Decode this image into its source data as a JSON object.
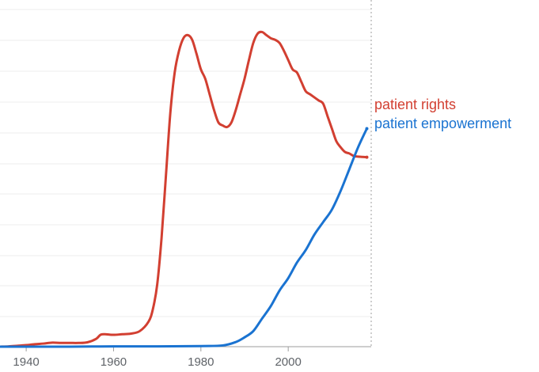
{
  "chart_data": {
    "type": "line",
    "x_ticks": [
      1940,
      1960,
      1980,
      2000
    ],
    "xlim": [
      1934,
      2019
    ],
    "ylim": [
      0,
      1.1
    ],
    "grid": true,
    "series": [
      {
        "name": "patient rights",
        "color": "#d23f31",
        "points": [
          [
            1934,
            0.0
          ],
          [
            1936,
            0.001
          ],
          [
            1938,
            0.003
          ],
          [
            1940,
            0.005
          ],
          [
            1942,
            0.008
          ],
          [
            1944,
            0.01
          ],
          [
            1946,
            0.013
          ],
          [
            1948,
            0.012
          ],
          [
            1950,
            0.012
          ],
          [
            1952,
            0.012
          ],
          [
            1954,
            0.014
          ],
          [
            1956,
            0.025
          ],
          [
            1957,
            0.038
          ],
          [
            1958,
            0.04
          ],
          [
            1960,
            0.038
          ],
          [
            1962,
            0.04
          ],
          [
            1964,
            0.042
          ],
          [
            1966,
            0.05
          ],
          [
            1968,
            0.08
          ],
          [
            1969,
            0.12
          ],
          [
            1970,
            0.2
          ],
          [
            1971,
            0.35
          ],
          [
            1972,
            0.55
          ],
          [
            1973,
            0.75
          ],
          [
            1974,
            0.88
          ],
          [
            1975,
            0.95
          ],
          [
            1976,
            0.99
          ],
          [
            1977,
            1.0
          ],
          [
            1978,
            0.985
          ],
          [
            1979,
            0.94
          ],
          [
            1980,
            0.89
          ],
          [
            1981,
            0.86
          ],
          [
            1982,
            0.81
          ],
          [
            1983,
            0.76
          ],
          [
            1984,
            0.72
          ],
          [
            1985,
            0.71
          ],
          [
            1986,
            0.705
          ],
          [
            1987,
            0.72
          ],
          [
            1988,
            0.76
          ],
          [
            1989,
            0.81
          ],
          [
            1990,
            0.86
          ],
          [
            1991,
            0.92
          ],
          [
            1992,
            0.975
          ],
          [
            1993,
            1.005
          ],
          [
            1994,
            1.01
          ],
          [
            1995,
            1.0
          ],
          [
            1996,
            0.99
          ],
          [
            1997,
            0.985
          ],
          [
            1998,
            0.975
          ],
          [
            1999,
            0.95
          ],
          [
            2000,
            0.92
          ],
          [
            2001,
            0.89
          ],
          [
            2002,
            0.88
          ],
          [
            2003,
            0.85
          ],
          [
            2004,
            0.82
          ],
          [
            2005,
            0.81
          ],
          [
            2006,
            0.8
          ],
          [
            2007,
            0.79
          ],
          [
            2008,
            0.78
          ],
          [
            2009,
            0.74
          ],
          [
            2010,
            0.7
          ],
          [
            2011,
            0.66
          ],
          [
            2012,
            0.64
          ],
          [
            2013,
            0.625
          ],
          [
            2014,
            0.62
          ],
          [
            2015,
            0.612
          ],
          [
            2016,
            0.61
          ],
          [
            2017,
            0.609
          ],
          [
            2018,
            0.608
          ]
        ]
      },
      {
        "name": "patient empowerment",
        "color": "#1a73d1",
        "points": [
          [
            1934,
            0.0
          ],
          [
            1940,
            0.0
          ],
          [
            1950,
            0.0
          ],
          [
            1960,
            0.001
          ],
          [
            1970,
            0.001
          ],
          [
            1980,
            0.002
          ],
          [
            1985,
            0.004
          ],
          [
            1988,
            0.015
          ],
          [
            1990,
            0.03
          ],
          [
            1992,
            0.05
          ],
          [
            1994,
            0.09
          ],
          [
            1996,
            0.13
          ],
          [
            1998,
            0.18
          ],
          [
            2000,
            0.22
          ],
          [
            2002,
            0.27
          ],
          [
            2004,
            0.31
          ],
          [
            2006,
            0.36
          ],
          [
            2008,
            0.4
          ],
          [
            2010,
            0.44
          ],
          [
            2012,
            0.5
          ],
          [
            2014,
            0.57
          ],
          [
            2016,
            0.64
          ],
          [
            2018,
            0.7
          ]
        ]
      }
    ]
  }
}
